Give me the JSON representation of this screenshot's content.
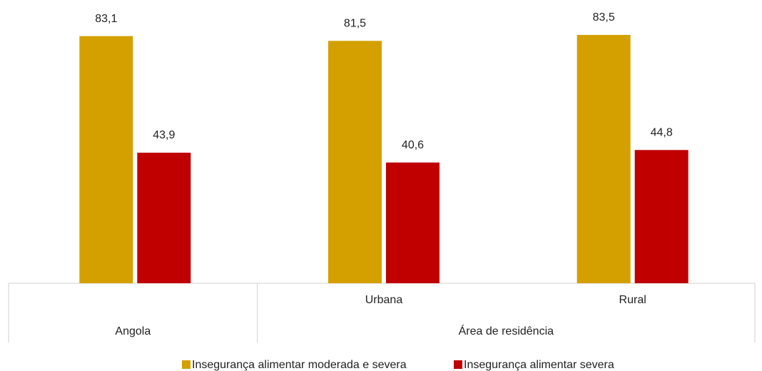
{
  "chart_data": {
    "type": "bar",
    "categories": [
      null,
      "Urbana",
      "Rural"
    ],
    "groups": [
      {
        "name": "Angola",
        "count": 1
      },
      {
        "name": "Área de residência",
        "count": 2
      }
    ],
    "series": [
      {
        "name": "Insegurança alimentar moderada e severa",
        "color": "#d4a000",
        "values": [
          83.1,
          81.5,
          83.5
        ],
        "value_labels": [
          "83,1",
          "81,5",
          "83,5"
        ]
      },
      {
        "name": "Insegurança alimentar severa",
        "color": "#c00000",
        "values": [
          43.9,
          40.6,
          44.8
        ],
        "value_labels": [
          "43,9",
          "40,6",
          "44,8"
        ]
      }
    ],
    "ylim": [
      0,
      95
    ]
  }
}
